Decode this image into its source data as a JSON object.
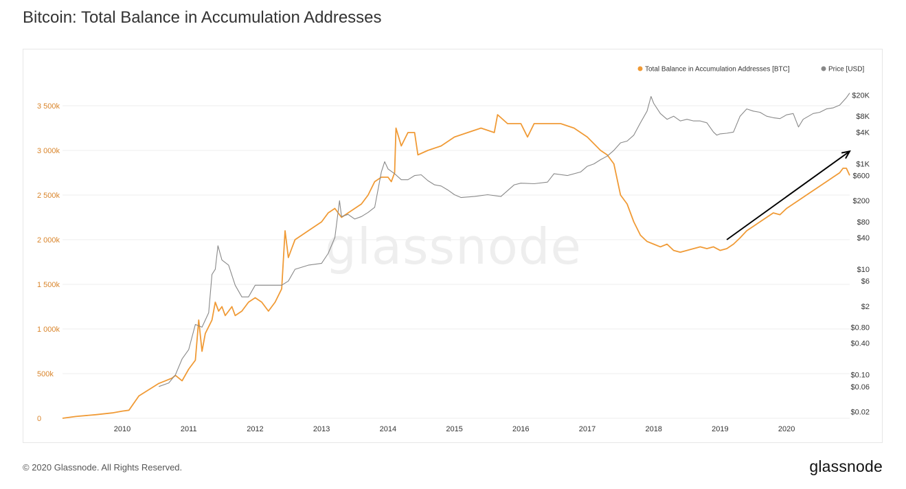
{
  "chart_data": {
    "type": "line",
    "title": "Bitcoin: Total Balance in Accumulation Addresses",
    "watermark": "glassnode",
    "legend": [
      "Total Balance in Accumulation Addresses [BTC]",
      "Price [USD]"
    ],
    "colors": {
      "balance": "#f09a35",
      "price": "#888888",
      "left_axis": "#d9842a",
      "arrow": "#000000"
    },
    "x_ticks": [
      "2010",
      "2011",
      "2012",
      "2013",
      "2014",
      "2015",
      "2016",
      "2017",
      "2018",
      "2019",
      "2020"
    ],
    "x_range": [
      2009.1,
      2020.95
    ],
    "y_left": {
      "label": "Total Balance in Accumulation Addresses [BTC]",
      "range": [
        0,
        3900000
      ],
      "ticks": [
        0,
        500000,
        1000000,
        1500000,
        2000000,
        2500000,
        3000000,
        3500000
      ],
      "tick_labels": [
        "0",
        "500k",
        "1 000k",
        "1 500k",
        "2 000k",
        "2 500k",
        "3 000k",
        "3 500k"
      ]
    },
    "y_right": {
      "label": "Price [USD]",
      "scale": "log",
      "range": [
        0.015,
        60000
      ],
      "ticks": [
        0.02,
        0.06,
        0.1,
        0.4,
        0.8,
        2,
        6,
        10,
        40,
        80,
        200,
        600,
        1000,
        4000,
        8000,
        20000
      ],
      "tick_labels": [
        "$0.02",
        "$0.06",
        "$0.10",
        "$0.40",
        "$0.80",
        "$2",
        "$6",
        "$10",
        "$40",
        "$80",
        "$200",
        "$600",
        "$1K",
        "$4K",
        "$8K",
        "$20K"
      ]
    },
    "series": [
      {
        "name": "Total Balance in Accumulation Addresses [BTC]",
        "axis": "left",
        "x": [
          2009.1,
          2009.3,
          2009.6,
          2009.85,
          2010.0,
          2010.1,
          2010.25,
          2010.4,
          2010.55,
          2010.65,
          2010.75,
          2010.8,
          2010.9,
          2011.0,
          2011.1,
          2011.15,
          2011.2,
          2011.25,
          2011.35,
          2011.4,
          2011.45,
          2011.5,
          2011.55,
          2011.6,
          2011.65,
          2011.7,
          2011.8,
          2011.9,
          2012.0,
          2012.1,
          2012.2,
          2012.3,
          2012.4,
          2012.45,
          2012.5,
          2012.55,
          2012.6,
          2012.7,
          2012.8,
          2012.9,
          2013.0,
          2013.1,
          2013.2,
          2013.3,
          2013.4,
          2013.5,
          2013.6,
          2013.7,
          2013.8,
          2013.9,
          2014.0,
          2014.05,
          2014.1,
          2014.12,
          2014.2,
          2014.3,
          2014.4,
          2014.45,
          2014.6,
          2014.8,
          2015.0,
          2015.2,
          2015.4,
          2015.6,
          2015.65,
          2015.8,
          2016.0,
          2016.1,
          2016.2,
          2016.4,
          2016.6,
          2016.8,
          2017.0,
          2017.2,
          2017.3,
          2017.4,
          2017.5,
          2017.6,
          2017.7,
          2017.8,
          2017.9,
          2018.0,
          2018.1,
          2018.2,
          2018.3,
          2018.4,
          2018.5,
          2018.6,
          2018.7,
          2018.8,
          2018.9,
          2019.0,
          2019.1,
          2019.2,
          2019.3,
          2019.4,
          2019.5,
          2019.6,
          2019.7,
          2019.8,
          2019.9,
          2020.0,
          2020.1,
          2020.2,
          2020.3,
          2020.4,
          2020.5,
          2020.6,
          2020.7,
          2020.8,
          2020.85,
          2020.9,
          2020.95
        ],
        "values": [
          0,
          20000,
          40000,
          60000,
          80000,
          90000,
          250000,
          320000,
          390000,
          420000,
          450000,
          480000,
          420000,
          550000,
          650000,
          1100000,
          750000,
          950000,
          1100000,
          1300000,
          1200000,
          1250000,
          1150000,
          1200000,
          1250000,
          1150000,
          1200000,
          1300000,
          1350000,
          1300000,
          1200000,
          1300000,
          1450000,
          2100000,
          1800000,
          1900000,
          2000000,
          2050000,
          2100000,
          2150000,
          2200000,
          2300000,
          2350000,
          2250000,
          2300000,
          2350000,
          2400000,
          2500000,
          2650000,
          2700000,
          2700000,
          2650000,
          2750000,
          3250000,
          3050000,
          3200000,
          3200000,
          2950000,
          3000000,
          3050000,
          3150000,
          3200000,
          3250000,
          3200000,
          3400000,
          3300000,
          3300000,
          3150000,
          3300000,
          3300000,
          3300000,
          3250000,
          3150000,
          3000000,
          2950000,
          2850000,
          2500000,
          2400000,
          2200000,
          2050000,
          1980000,
          1950000,
          1920000,
          1950000,
          1880000,
          1860000,
          1880000,
          1900000,
          1920000,
          1900000,
          1920000,
          1880000,
          1900000,
          1950000,
          2020000,
          2100000,
          2150000,
          2200000,
          2250000,
          2300000,
          2280000,
          2350000,
          2400000,
          2450000,
          2500000,
          2550000,
          2600000,
          2650000,
          2700000,
          2750000,
          2800000,
          2800000,
          2720000
        ]
      },
      {
        "name": "Price [USD]",
        "axis": "right",
        "x": [
          2010.55,
          2010.7,
          2010.8,
          2010.9,
          2011.0,
          2011.1,
          2011.2,
          2011.3,
          2011.35,
          2011.4,
          2011.44,
          2011.5,
          2011.6,
          2011.7,
          2011.8,
          2011.9,
          2012.0,
          2012.2,
          2012.4,
          2012.5,
          2012.6,
          2012.8,
          2013.0,
          2013.1,
          2013.2,
          2013.27,
          2013.3,
          2013.4,
          2013.5,
          2013.6,
          2013.7,
          2013.8,
          2013.9,
          2013.95,
          2014.0,
          2014.1,
          2014.2,
          2014.3,
          2014.4,
          2014.5,
          2014.6,
          2014.7,
          2014.8,
          2014.9,
          2015.0,
          2015.1,
          2015.3,
          2015.5,
          2015.7,
          2015.9,
          2016.0,
          2016.2,
          2016.4,
          2016.5,
          2016.7,
          2016.9,
          2017.0,
          2017.1,
          2017.2,
          2017.3,
          2017.4,
          2017.5,
          2017.6,
          2017.7,
          2017.8,
          2017.9,
          2017.96,
          2018.0,
          2018.1,
          2018.2,
          2018.3,
          2018.4,
          2018.5,
          2018.6,
          2018.7,
          2018.8,
          2018.9,
          2018.95,
          2019.0,
          2019.1,
          2019.2,
          2019.3,
          2019.4,
          2019.5,
          2019.6,
          2019.7,
          2019.8,
          2019.9,
          2020.0,
          2020.1,
          2020.18,
          2020.25,
          2020.4,
          2020.5,
          2020.6,
          2020.7,
          2020.8,
          2020.9,
          2020.95
        ],
        "values": [
          0.06,
          0.07,
          0.1,
          0.2,
          0.3,
          0.9,
          0.8,
          1.5,
          8,
          10,
          28,
          15,
          12,
          5,
          3,
          3,
          5,
          5,
          5,
          6,
          10,
          12,
          13,
          20,
          40,
          200,
          100,
          110,
          90,
          100,
          120,
          150,
          700,
          1100,
          800,
          650,
          500,
          500,
          600,
          620,
          480,
          400,
          380,
          320,
          260,
          230,
          240,
          260,
          240,
          400,
          430,
          420,
          450,
          650,
          600,
          700,
          900,
          1000,
          1200,
          1400,
          1800,
          2500,
          2700,
          3500,
          6000,
          10000,
          19000,
          14000,
          9000,
          7000,
          8000,
          6500,
          7000,
          6500,
          6500,
          6000,
          4000,
          3500,
          3700,
          3800,
          4000,
          8000,
          11000,
          10000,
          9500,
          8000,
          7500,
          7200,
          8500,
          9000,
          5000,
          7000,
          9000,
          9500,
          11000,
          11500,
          13000,
          18000,
          22000
        ]
      }
    ],
    "annotation": {
      "type": "arrow",
      "from": [
        2019.1,
        2000000
      ],
      "to": [
        2020.95,
        2990000
      ]
    }
  },
  "footer": {
    "copyright": "© 2020 Glassnode. All Rights Reserved.",
    "logo": "glassnode"
  }
}
